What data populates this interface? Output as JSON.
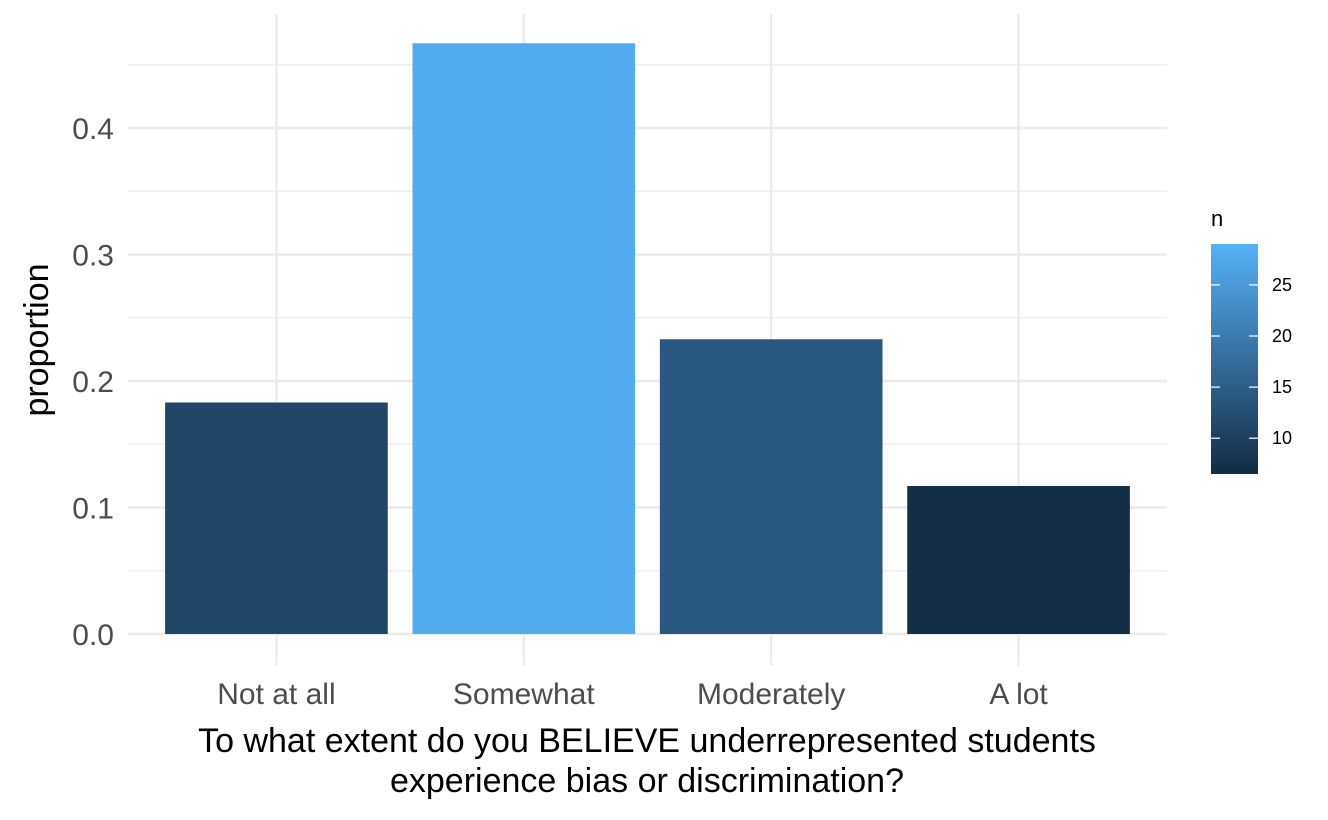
{
  "chart_data": {
    "type": "bar",
    "categories": [
      "Not at all",
      "Somewhat",
      "Moderately",
      "A lot"
    ],
    "values": [
      0.183,
      0.467,
      0.233,
      0.117
    ],
    "counts": [
      11,
      28,
      14,
      7
    ],
    "ylim": [
      0,
      0.48
    ],
    "yticks": [
      0.0,
      0.1,
      0.2,
      0.3,
      0.4
    ],
    "ytick_labels": [
      "0.0",
      "0.1",
      "0.2",
      "0.3",
      "0.4"
    ],
    "ylabel": "proportion",
    "xlabel_lines": [
      "To what extent do you BELIEVE underrepresented students",
      "experience bias or discrimination?"
    ],
    "grid": true,
    "legend": {
      "title": "n",
      "placement": "right",
      "min": 6.5,
      "max": 29,
      "ticks": [
        10,
        15,
        20,
        25
      ],
      "tick_labels": [
        "10",
        "15",
        "20",
        "25"
      ],
      "color_low": "#132B43",
      "color_high": "#56B1F7"
    }
  }
}
